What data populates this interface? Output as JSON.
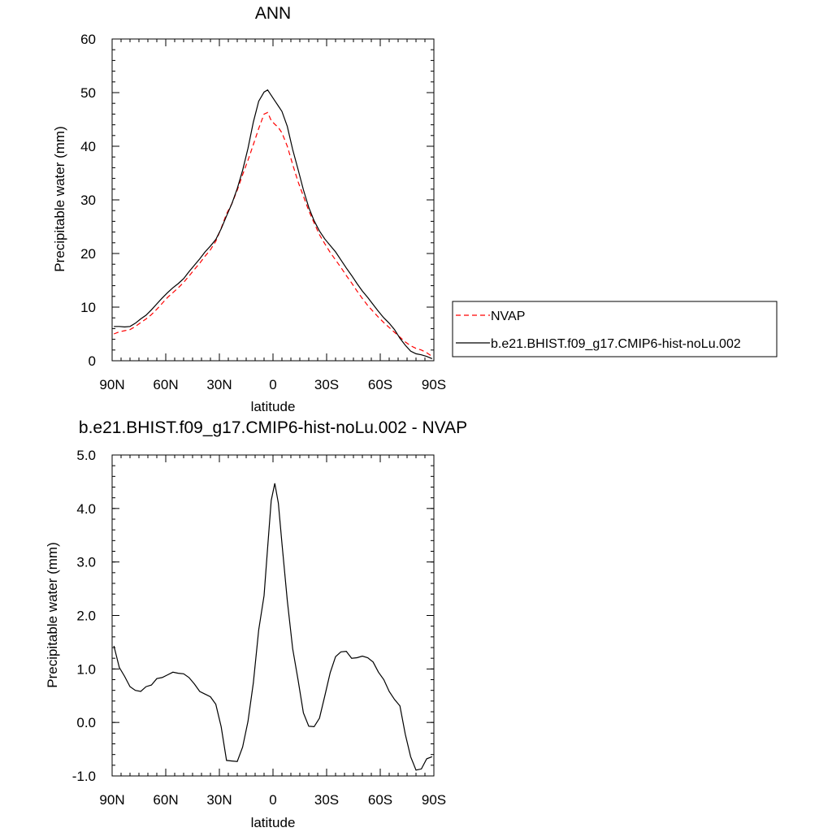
{
  "chart_data": [
    {
      "type": "line",
      "title": "ANN",
      "xlabel": "latitude",
      "ylabel": "Precipitable water (mm)",
      "xlim": [
        90,
        -90
      ],
      "ylim": [
        0,
        60
      ],
      "x_ticks": [
        90,
        60,
        30,
        0,
        -30,
        -60,
        -90
      ],
      "x_tick_labels": [
        "90N",
        "60N",
        "30N",
        "0",
        "30S",
        "60S",
        "90S"
      ],
      "y_ticks": [
        0,
        10,
        20,
        30,
        40,
        50,
        60
      ],
      "y_tick_labels": [
        "0",
        "10",
        "20",
        "30",
        "40",
        "50",
        "60"
      ],
      "legend_position": "right",
      "series": [
        {
          "name": "NVAP",
          "color": "#ff0000",
          "dash": true,
          "x": [
            89,
            86,
            83,
            80,
            77,
            74,
            71,
            68,
            65,
            62,
            59,
            56,
            53,
            50,
            47,
            44,
            41,
            38,
            35,
            32,
            29,
            26,
            23,
            20,
            17,
            14,
            11,
            8,
            5,
            3,
            1,
            -1,
            -3,
            -5,
            -8,
            -11,
            -14,
            -17,
            -20,
            -23,
            -26,
            -29,
            -32,
            -35,
            -38,
            -41,
            -44,
            -47,
            -50,
            -53,
            -56,
            -59,
            -62,
            -65,
            -68,
            -71,
            -74,
            -77,
            -80,
            -83,
            -86,
            -89
          ],
          "y": [
            5.0,
            5.4,
            5.6,
            5.8,
            6.4,
            7.1,
            7.8,
            8.6,
            9.6,
            10.7,
            11.8,
            12.7,
            13.6,
            14.6,
            15.8,
            17.0,
            18.2,
            19.5,
            20.7,
            22.3,
            24.7,
            27.4,
            29.3,
            31.8,
            34.7,
            37.4,
            40.3,
            43.3,
            46.0,
            46.3,
            44.8,
            44.1,
            43.5,
            42.5,
            40.0,
            36.6,
            33.4,
            30.7,
            28.0,
            25.7,
            23.5,
            21.8,
            20.2,
            18.8,
            17.4,
            15.9,
            14.5,
            13.0,
            11.6,
            10.3,
            9.2,
            8.1,
            7.1,
            6.2,
            5.3,
            4.4,
            3.5,
            2.8,
            2.3,
            2.0,
            1.5,
            0.8
          ]
        },
        {
          "name": "b.e21.BHIST.f09_g17.CMIP6-hist-noLu.002",
          "color": "#000000",
          "dash": false,
          "x": [
            89,
            86,
            83,
            80,
            77,
            74,
            71,
            68,
            65,
            62,
            59,
            56,
            53,
            50,
            47,
            44,
            41,
            38,
            35,
            32,
            29,
            26,
            23,
            20,
            17,
            14,
            11,
            8,
            5,
            3,
            1,
            -1,
            -3,
            -5,
            -8,
            -11,
            -14,
            -17,
            -20,
            -23,
            -26,
            -29,
            -32,
            -35,
            -38,
            -41,
            -44,
            -47,
            -50,
            -53,
            -56,
            -59,
            -62,
            -65,
            -68,
            -71,
            -74,
            -77,
            -80,
            -83,
            -86,
            -89
          ],
          "y": [
            6.4,
            6.4,
            6.3,
            6.4,
            7.0,
            7.8,
            8.5,
            9.5,
            10.6,
            11.7,
            12.7,
            13.6,
            14.4,
            15.3,
            16.6,
            17.8,
            19.0,
            20.3,
            21.4,
            22.6,
            24.6,
            27.0,
            29.3,
            32.1,
            35.5,
            39.6,
            44.5,
            48.4,
            50.1,
            50.5,
            49.5,
            48.5,
            47.5,
            46.5,
            43.7,
            39.4,
            35.7,
            31.9,
            28.6,
            26.1,
            24.2,
            22.7,
            21.5,
            20.3,
            18.8,
            17.3,
            15.9,
            14.4,
            13.0,
            11.8,
            10.5,
            9.2,
            8.0,
            7.0,
            5.8,
            4.2,
            2.9,
            1.8,
            1.3,
            1.1,
            0.8,
            0.4
          ]
        }
      ]
    },
    {
      "type": "line",
      "title": "b.e21.BHIST.f09_g17.CMIP6-hist-noLu.002 - NVAP",
      "xlabel": "latitude",
      "ylabel": "Precipitable water (mm)",
      "xlim": [
        90,
        -90
      ],
      "ylim": [
        -1.0,
        5.0
      ],
      "x_ticks": [
        90,
        60,
        30,
        0,
        -30,
        -60,
        -90
      ],
      "x_tick_labels": [
        "90N",
        "60N",
        "30N",
        "0",
        "30S",
        "60S",
        "90S"
      ],
      "y_ticks": [
        -1.0,
        0.0,
        1.0,
        2.0,
        3.0,
        4.0,
        5.0
      ],
      "y_tick_labels": [
        "-1.0",
        "0.0",
        "1.0",
        "2.0",
        "3.0",
        "4.0",
        "5.0"
      ],
      "series": [
        {
          "color": "#000000",
          "dash": false,
          "x": [
            89,
            86,
            83,
            80,
            77,
            74,
            71,
            68,
            65,
            62,
            59,
            56,
            53,
            50,
            47,
            44,
            41,
            38,
            35,
            32,
            29,
            26,
            23,
            20,
            17,
            14,
            11,
            8,
            5,
            3,
            1,
            -1,
            -3,
            -5,
            -8,
            -11,
            -14,
            -17,
            -20,
            -23,
            -26,
            -29,
            -32,
            -35,
            -38,
            -41,
            -44,
            -47,
            -50,
            -53,
            -56,
            -59,
            -62,
            -65,
            -68,
            -71,
            -74,
            -77,
            -80,
            -83,
            -86,
            -89
          ],
          "y": [
            1.43,
            1.03,
            0.86,
            0.67,
            0.6,
            0.58,
            0.67,
            0.7,
            0.82,
            0.84,
            0.89,
            0.94,
            0.92,
            0.91,
            0.84,
            0.72,
            0.58,
            0.53,
            0.48,
            0.34,
            -0.08,
            -0.71,
            -0.72,
            -0.73,
            -0.46,
            0.02,
            0.74,
            1.73,
            2.37,
            3.27,
            4.15,
            4.47,
            4.1,
            3.35,
            2.28,
            1.38,
            0.8,
            0.18,
            -0.07,
            -0.08,
            0.08,
            0.5,
            0.93,
            1.23,
            1.32,
            1.33,
            1.2,
            1.21,
            1.24,
            1.21,
            1.13,
            0.94,
            0.8,
            0.58,
            0.43,
            0.31,
            -0.22,
            -0.64,
            -0.89,
            -0.87,
            -0.68,
            -0.64
          ]
        }
      ]
    }
  ]
}
